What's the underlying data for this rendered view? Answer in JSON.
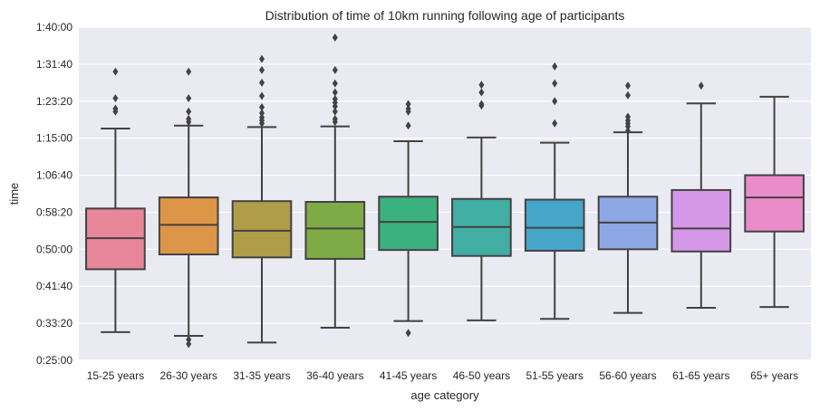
{
  "chart_data": {
    "type": "box",
    "title": "Distribution of time of 10km running following age of participants",
    "xlabel": "age category",
    "ylabel": "time",
    "y_unit": "seconds",
    "ylim": [
      1500,
      6000
    ],
    "y_ticks": [
      1500,
      2000,
      2500,
      3000,
      3500,
      4000,
      4500,
      5000,
      5500,
      6000
    ],
    "y_tick_labels": [
      "0:25:00",
      "0:33:20",
      "0:41:40",
      "0:50:00",
      "0:58:20",
      "1:06:40",
      "1:15:00",
      "1:23:20",
      "1:31:40",
      "1:40:00"
    ],
    "grid": true,
    "palette": [
      "#e8879a",
      "#dd9547",
      "#b09d48",
      "#7eab45",
      "#3bb17f",
      "#43aea4",
      "#46a6c9",
      "#8ea8e5",
      "#d597e8",
      "#ea8cca"
    ],
    "box_stroke": "#424242",
    "background": "#eaeaf2",
    "categories": [
      "15-25 years",
      "26-30 years",
      "31-35 years",
      "36-40 years",
      "41-45 years",
      "46-50 years",
      "51-55 years",
      "56-60 years",
      "61-65 years",
      "65+ years"
    ],
    "boxes": [
      {
        "whisker_low": 1880,
        "q1": 2730,
        "median": 3150,
        "q3": 3550,
        "whisker_high": 4630,
        "outliers": [
          4860,
          4900,
          5040,
          5400
        ]
      },
      {
        "whisker_low": 1830,
        "q1": 2930,
        "median": 3330,
        "q3": 3700,
        "whisker_high": 4670,
        "outliers": [
          1720,
          1780,
          4720,
          4760,
          4860,
          5040,
          5400
        ]
      },
      {
        "whisker_low": 1740,
        "q1": 2890,
        "median": 3250,
        "q3": 3650,
        "whisker_high": 4650,
        "outliers": [
          4700,
          4740,
          4780,
          4840,
          4920,
          5070,
          5250,
          5420,
          5570
        ]
      },
      {
        "whisker_low": 1940,
        "q1": 2870,
        "median": 3280,
        "q3": 3640,
        "whisker_high": 4660,
        "outliers": [
          4720,
          4760,
          4860,
          4930,
          4980,
          5030,
          5120,
          5240,
          5420,
          5860
        ]
      },
      {
        "whisker_low": 2030,
        "q1": 2990,
        "median": 3370,
        "q3": 3710,
        "whisker_high": 4460,
        "outliers": [
          1870,
          4670,
          4860,
          4900,
          4960
        ]
      },
      {
        "whisker_low": 2040,
        "q1": 2910,
        "median": 3300,
        "q3": 3680,
        "whisker_high": 4510,
        "outliers": [
          4940,
          4960,
          5120,
          5220
        ]
      },
      {
        "whisker_low": 2060,
        "q1": 2980,
        "median": 3290,
        "q3": 3670,
        "whisker_high": 4440,
        "outliers": [
          4700,
          5000,
          5240,
          5470
        ]
      },
      {
        "whisker_low": 2140,
        "q1": 3000,
        "median": 3360,
        "q3": 3710,
        "whisker_high": 4580,
        "outliers": [
          4600,
          4660,
          4700,
          4740,
          4790,
          5080,
          5210
        ]
      },
      {
        "whisker_low": 2210,
        "q1": 2970,
        "median": 3280,
        "q3": 3800,
        "whisker_high": 4970,
        "outliers": [
          5210
        ]
      },
      {
        "whisker_low": 2220,
        "q1": 3240,
        "median": 3700,
        "q3": 4000,
        "whisker_high": 5060,
        "outliers": []
      }
    ]
  }
}
